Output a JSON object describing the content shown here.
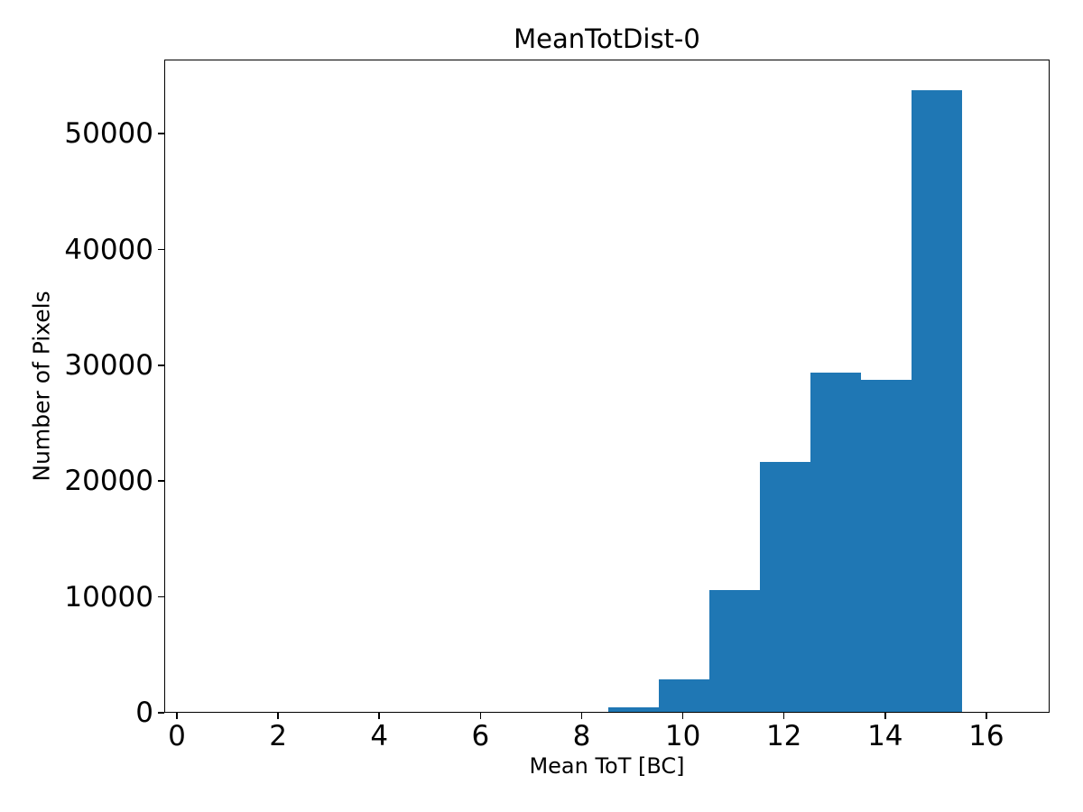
{
  "chart_data": {
    "type": "bar",
    "subtype": "histogram",
    "title": "MeanTotDist-0",
    "xlabel": "Mean ToT [BC]",
    "ylabel": "Number of Pixels",
    "bar_color": "#1f77b4",
    "bin_edges": [
      8.5,
      9.5,
      10.5,
      11.5,
      12.5,
      13.5,
      14.5,
      15.5
    ],
    "counts": [
      400,
      2800,
      10500,
      21600,
      29300,
      28700,
      53700
    ],
    "xticks": [
      0,
      2,
      4,
      6,
      8,
      10,
      12,
      14,
      16
    ],
    "yticks": [
      0,
      10000,
      20000,
      30000,
      40000,
      50000
    ],
    "xlim": [
      -0.25,
      17.25
    ],
    "ylim": [
      0,
      56400
    ],
    "grid": false,
    "legend_position": "none"
  }
}
